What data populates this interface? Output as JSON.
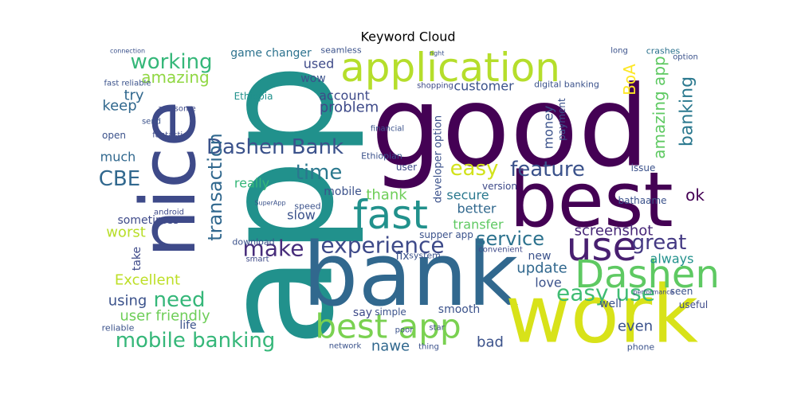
{
  "chart_data": {
    "type": "wordcloud",
    "title": "Keyword Cloud",
    "words": [
      "app",
      "good",
      "bank",
      "work",
      "nice",
      "best",
      "application",
      "fast",
      "use",
      "Dashen",
      "best app",
      "experience",
      "easy use",
      "mobile banking",
      "Dashen Bank",
      "transaction",
      "working",
      "amazing",
      "make",
      "time",
      "feature",
      "easy",
      "great",
      "service",
      "CBE",
      "banking",
      "amazing app",
      "BoA",
      "need",
      "Excellent",
      "user friendly",
      "using",
      "worst",
      "keep",
      "try",
      "much",
      "sometimes",
      "take",
      "life",
      "really",
      "mobile",
      "thank",
      "secure",
      "better",
      "transfer",
      "slow",
      "ok",
      "screenshot",
      "always",
      "update",
      "love",
      "new",
      "money",
      "payment",
      "customer",
      "problem",
      "account",
      "used",
      "wow",
      "game changer",
      "seamless",
      "developer option",
      "version",
      "user",
      "Ethiopia",
      "even",
      "bad",
      "nawe",
      "say",
      "simple",
      "fix",
      "system",
      "supper app",
      "convenient",
      "digital banking",
      "crashes",
      "option",
      "download",
      "smart",
      "financial",
      "fantastic",
      "open",
      "send",
      "awesome",
      "fast reliable",
      "long",
      "right",
      "shopping",
      "reliable",
      "phone",
      "network",
      "thing",
      "poor",
      "star",
      "smooth",
      "well",
      "seen",
      "useful",
      "bathaame",
      "issue",
      "Ethiopian",
      "SuperApp",
      "speed",
      "android",
      "performance",
      "connection"
    ],
    "weights": [
      190,
      140,
      110,
      100,
      95,
      95,
      50,
      50,
      50,
      48,
      42,
      28,
      28,
      26,
      26,
      24,
      26,
      20,
      28,
      26,
      26,
      26,
      26,
      24,
      26,
      22,
      20,
      20,
      26,
      18,
      18,
      18,
      18,
      18,
      18,
      16,
      14,
      14,
      14,
      16,
      14,
      18,
      16,
      16,
      16,
      16,
      20,
      18,
      16,
      18,
      16,
      14,
      16,
      12,
      16,
      18,
      16,
      16,
      14,
      14,
      11,
      13,
      12,
      12,
      12,
      18,
      18,
      18,
      14,
      12,
      14,
      11,
      12,
      10,
      11,
      11,
      10,
      11,
      10,
      10,
      10,
      12,
      10,
      10,
      10,
      10,
      8,
      10,
      11,
      11,
      10,
      10,
      10,
      10,
      14,
      14,
      12,
      12,
      12,
      12,
      11,
      8,
      11,
      10,
      8,
      8
    ],
    "colors": [
      "#21918c",
      "#440154",
      "#31688e",
      "#d8e219",
      "#3e4a89",
      "#440154",
      "#b5de2b",
      "#21918c",
      "#481f70",
      "#5ec962",
      "#7ad151",
      "#3e4a89",
      "#3fbc73",
      "#35b779",
      "#3b528b",
      "#31688e",
      "#35b779",
      "#90d743",
      "#472d7b",
      "#2a788e",
      "#3b528b",
      "#d2e21b",
      "#443983",
      "#2c728e",
      "#31688e",
      "#2a788e",
      "#5ec962",
      "#fde725",
      "#35b779",
      "#bddf26",
      "#6ece58",
      "#3b528b",
      "#b8de29",
      "#31688e",
      "#31688e",
      "#31688e",
      "#3e4a89",
      "#3e4a89",
      "#3b528b",
      "#35b779",
      "#3b528b",
      "#6ece58",
      "#2a788e",
      "#31688e",
      "#5ec962",
      "#3b528b",
      "#440154",
      "#482878",
      "#21918c",
      "#31688e",
      "#3b528b",
      "#3b528b",
      "#3b528b",
      "#3b528b",
      "#3b528b",
      "#3e4a89",
      "#3e4a89",
      "#3e4a89",
      "#3b528b",
      "#2c728e",
      "#3b528b",
      "#3b528b",
      "#3e4a89",
      "#3e4a89",
      "#21918c",
      "#3b528b",
      "#3b528b",
      "#31688e",
      "#3e4a89",
      "#3b528b",
      "#3b528b",
      "#3b528b",
      "#3b528b",
      "#3e4a89",
      "#3b528b",
      "#2c728e",
      "#3b528b",
      "#3b528b",
      "#3e4a89",
      "#3b528b",
      "#3e4a89",
      "#3b528b",
      "#3b528b",
      "#3e4a89",
      "#3b528b",
      "#3b528b",
      "#3b528b",
      "#3e4a89",
      "#3b528b",
      "#3b528b",
      "#3b528b",
      "#3b528b",
      "#3b528b",
      "#3e4a89",
      "#3b528b",
      "#3b528b",
      "#3b528b",
      "#3e4a89",
      "#3b528b",
      "#3b528b",
      "#3b528b",
      "#3b528b",
      "#3b528b",
      "#3e4a89",
      "#3e4a89",
      "#3b528b"
    ]
  }
}
